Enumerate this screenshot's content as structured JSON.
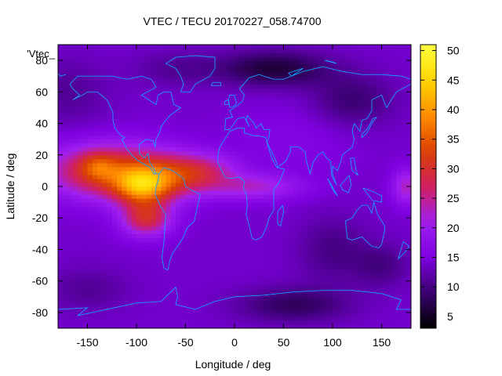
{
  "chart_data": {
    "type": "heatmap",
    "title": "VTEC / TECU 20170227_058.74700",
    "xlabel": "Longitude / deg",
    "ylabel": "Latitude / deg",
    "key_label": "'Vtec_",
    "xlim": [
      -180,
      180
    ],
    "ylim": [
      -90,
      90
    ],
    "xticks": [
      -150,
      -100,
      -50,
      0,
      50,
      100,
      150
    ],
    "yticks": [
      -80,
      -60,
      -40,
      -20,
      0,
      20,
      40,
      60,
      80
    ],
    "colorbar": {
      "min": 3,
      "max": 51,
      "ticks": [
        5,
        10,
        15,
        20,
        25,
        30,
        35,
        40,
        45,
        50
      ],
      "palette": [
        "#000000",
        "#3a0070",
        "#7f00e0",
        "#a020f0",
        "#d02060",
        "#d94000",
        "#ff8c00",
        "#ffd700",
        "#ffff40"
      ]
    },
    "background_level": 14,
    "features": [
      {
        "lon": -125,
        "lat": 10,
        "sx": 45,
        "sy": 12,
        "amp": 19
      },
      {
        "lon": -95,
        "lat": 0,
        "sx": 20,
        "sy": 8,
        "amp": 17
      },
      {
        "lon": -90,
        "lat": -20,
        "sx": 18,
        "sy": 8,
        "amp": 15
      },
      {
        "lon": -140,
        "lat": 13,
        "sx": 12,
        "sy": 6,
        "amp": 6
      },
      {
        "lon": -65,
        "lat": 6,
        "sx": 25,
        "sy": 10,
        "amp": 9
      },
      {
        "lon": -30,
        "lat": 10,
        "sx": 25,
        "sy": 8,
        "amp": 9
      },
      {
        "lon": 20,
        "lat": 0,
        "sx": 35,
        "sy": 6,
        "amp": 8
      },
      {
        "lon": 175,
        "lat": 0,
        "sx": 10,
        "sy": 8,
        "amp": 9
      },
      {
        "lon": 40,
        "lat": 75,
        "sx": 40,
        "sy": 8,
        "amp": -8
      },
      {
        "lon": 120,
        "lat": 55,
        "sx": 30,
        "sy": 12,
        "amp": -5
      },
      {
        "lon": 60,
        "lat": -75,
        "sx": 40,
        "sy": 8,
        "amp": -6
      },
      {
        "lon": 100,
        "lat": -40,
        "sx": 25,
        "sy": 15,
        "amp": -4
      },
      {
        "lon": 150,
        "lat": -50,
        "sx": 20,
        "sy": 10,
        "amp": -4
      },
      {
        "lon": -170,
        "lat": 60,
        "sx": 30,
        "sy": 15,
        "amp": -3
      },
      {
        "lon": -60,
        "lat": 75,
        "sx": 30,
        "sy": 8,
        "amp": -3
      },
      {
        "lon": -150,
        "lat": -65,
        "sx": 30,
        "sy": 10,
        "amp": -3
      },
      {
        "lon": 60,
        "lat": 30,
        "sx": 40,
        "sy": 15,
        "amp": 2
      }
    ],
    "coastlines": [
      [
        [
          -168,
          65
        ],
        [
          -160,
          70
        ],
        [
          -140,
          70
        ],
        [
          -125,
          70
        ],
        [
          -110,
          68
        ],
        [
          -95,
          70
        ],
        [
          -85,
          68
        ],
        [
          -80,
          63
        ],
        [
          -95,
          58
        ],
        [
          -90,
          56
        ],
        [
          -80,
          52
        ],
        [
          -78,
          58
        ],
        [
          -72,
          60
        ],
        [
          -65,
          60
        ],
        [
          -62,
          52
        ],
        [
          -55,
          50
        ],
        [
          -66,
          45
        ],
        [
          -70,
          42
        ],
        [
          -75,
          38
        ],
        [
          -76,
          35
        ],
        [
          -80,
          30
        ],
        [
          -81,
          25
        ],
        [
          -83,
          29
        ],
        [
          -90,
          30
        ],
        [
          -97,
          27
        ],
        [
          -97,
          21
        ],
        [
          -92,
          18
        ],
        [
          -88,
          21
        ],
        [
          -87,
          16
        ],
        [
          -83,
          12
        ],
        [
          -80,
          8
        ],
        [
          -77,
          8
        ],
        [
          -82,
          8
        ],
        [
          -86,
          12
        ],
        [
          -92,
          14
        ],
        [
          -100,
          17
        ],
        [
          -105,
          20
        ],
        [
          -110,
          24
        ],
        [
          -115,
          30
        ],
        [
          -112,
          31
        ],
        [
          -117,
          33
        ],
        [
          -122,
          37
        ],
        [
          -124,
          42
        ],
        [
          -124,
          47
        ],
        [
          -130,
          55
        ],
        [
          -140,
          60
        ],
        [
          -150,
          60
        ],
        [
          -155,
          58
        ],
        [
          -165,
          55
        ],
        [
          -158,
          58
        ],
        [
          -165,
          62
        ],
        [
          -168,
          65
        ]
      ],
      [
        [
          -77,
          8
        ],
        [
          -72,
          12
        ],
        [
          -63,
          10
        ],
        [
          -52,
          5
        ],
        [
          -50,
          0
        ],
        [
          -45,
          -2
        ],
        [
          -35,
          -5
        ],
        [
          -38,
          -13
        ],
        [
          -41,
          -22
        ],
        [
          -48,
          -26
        ],
        [
          -53,
          -33
        ],
        [
          -58,
          -38
        ],
        [
          -63,
          -42
        ],
        [
          -66,
          -47
        ],
        [
          -68,
          -53
        ],
        [
          -72,
          -52
        ],
        [
          -74,
          -45
        ],
        [
          -72,
          -35
        ],
        [
          -71,
          -25
        ],
        [
          -70,
          -18
        ],
        [
          -76,
          -12
        ],
        [
          -81,
          -5
        ],
        [
          -80,
          0
        ],
        [
          -78,
          3
        ],
        [
          -77,
          8
        ]
      ],
      [
        [
          -55,
          60
        ],
        [
          -45,
          60
        ],
        [
          -40,
          65
        ],
        [
          -25,
          70
        ],
        [
          -20,
          75
        ],
        [
          -20,
          82
        ],
        [
          -40,
          83
        ],
        [
          -60,
          82
        ],
        [
          -70,
          78
        ],
        [
          -60,
          75
        ],
        [
          -55,
          70
        ],
        [
          -52,
          65
        ],
        [
          -55,
          60
        ]
      ],
      [
        [
          -10,
          36
        ],
        [
          -9,
          43
        ],
        [
          -2,
          44
        ],
        [
          -5,
          48
        ],
        [
          2,
          51
        ],
        [
          8,
          54
        ],
        [
          10,
          58
        ],
        [
          5,
          62
        ],
        [
          15,
          69
        ],
        [
          25,
          71
        ],
        [
          40,
          68
        ],
        [
          50,
          68
        ],
        [
          70,
          73
        ],
        [
          90,
          76
        ],
        [
          110,
          73
        ],
        [
          130,
          71
        ],
        [
          150,
          71
        ],
        [
          170,
          70
        ],
        [
          180,
          68
        ]
      ],
      [
        [
          180,
          65
        ],
        [
          165,
          60
        ],
        [
          160,
          55
        ],
        [
          155,
          50
        ],
        [
          150,
          58
        ],
        [
          140,
          55
        ],
        [
          140,
          48
        ],
        [
          135,
          43
        ],
        [
          130,
          42
        ],
        [
          128,
          35
        ],
        [
          122,
          40
        ],
        [
          120,
          35
        ],
        [
          122,
          30
        ],
        [
          120,
          25
        ],
        [
          110,
          20
        ],
        [
          108,
          15
        ],
        [
          105,
          10
        ],
        [
          100,
          13
        ],
        [
          100,
          8
        ],
        [
          104,
          1
        ],
        [
          99,
          7
        ],
        [
          98,
          16
        ],
        [
          94,
          18
        ],
        [
          90,
          22
        ],
        [
          85,
          20
        ],
        [
          80,
          15
        ],
        [
          77,
          8
        ],
        [
          73,
          17
        ],
        [
          72,
          22
        ],
        [
          66,
          25
        ],
        [
          57,
          25
        ],
        [
          57,
          22
        ],
        [
          52,
          16
        ],
        [
          44,
          12
        ],
        [
          43,
          15
        ],
        [
          38,
          22
        ],
        [
          33,
          28
        ],
        [
          35,
          31
        ],
        [
          36,
          36
        ],
        [
          30,
          36
        ],
        [
          27,
          40
        ],
        [
          22,
          37
        ],
        [
          20,
          40
        ],
        [
          13,
          45
        ],
        [
          12,
          42
        ],
        [
          15,
          38
        ],
        [
          10,
          44
        ],
        [
          3,
          43
        ],
        [
          -5,
          36
        ],
        [
          -10,
          36
        ]
      ],
      [
        [
          -17,
          15
        ],
        [
          -10,
          6
        ],
        [
          -5,
          5
        ],
        [
          5,
          6
        ],
        [
          10,
          3
        ],
        [
          9,
          -1
        ],
        [
          12,
          -5
        ],
        [
          13,
          -12
        ],
        [
          12,
          -18
        ],
        [
          15,
          -25
        ],
        [
          18,
          -33
        ],
        [
          22,
          -34
        ],
        [
          28,
          -32
        ],
        [
          33,
          -25
        ],
        [
          35,
          -20
        ],
        [
          40,
          -15
        ],
        [
          40,
          -8
        ],
        [
          40,
          -2
        ],
        [
          45,
          2
        ],
        [
          51,
          11
        ],
        [
          43,
          12
        ],
        [
          38,
          18
        ],
        [
          33,
          28
        ],
        [
          32,
          31
        ],
        [
          25,
          32
        ],
        [
          20,
          32
        ],
        [
          10,
          34
        ],
        [
          10,
          37
        ],
        [
          3,
          37
        ],
        [
          -5,
          35
        ],
        [
          -10,
          30
        ],
        [
          -15,
          25
        ],
        [
          -17,
          20
        ],
        [
          -17,
          15
        ]
      ],
      [
        [
          113,
          -22
        ],
        [
          115,
          -33
        ],
        [
          120,
          -34
        ],
        [
          130,
          -32
        ],
        [
          135,
          -35
        ],
        [
          140,
          -38
        ],
        [
          147,
          -39
        ],
        [
          150,
          -37
        ],
        [
          153,
          -28
        ],
        [
          153,
          -25
        ],
        [
          146,
          -18
        ],
        [
          142,
          -10
        ],
        [
          140,
          -17
        ],
        [
          136,
          -12
        ],
        [
          130,
          -12
        ],
        [
          125,
          -15
        ],
        [
          120,
          -20
        ],
        [
          113,
          -22
        ]
      ],
      [
        [
          49,
          -12
        ],
        [
          44,
          -16
        ],
        [
          44,
          -24
        ],
        [
          47,
          -25
        ],
        [
          50,
          -16
        ],
        [
          49,
          -12
        ]
      ],
      [
        [
          -5,
          50
        ],
        [
          0,
          51
        ],
        [
          2,
          53
        ],
        [
          0,
          58
        ],
        [
          -5,
          58
        ],
        [
          -6,
          55
        ],
        [
          -5,
          50
        ]
      ],
      [
        [
          -10,
          52
        ],
        [
          -6,
          52
        ],
        [
          -6,
          55
        ],
        [
          -10,
          54
        ],
        [
          -10,
          52
        ]
      ],
      [
        [
          -24,
          64
        ],
        [
          -14,
          64
        ],
        [
          -14,
          66
        ],
        [
          -22,
          66
        ],
        [
          -24,
          64
        ]
      ],
      [
        [
          130,
          31
        ],
        [
          135,
          34
        ],
        [
          141,
          41
        ],
        [
          145,
          44
        ],
        [
          141,
          43
        ],
        [
          136,
          37
        ],
        [
          130,
          33
        ],
        [
          130,
          31
        ]
      ],
      [
        [
          95,
          5
        ],
        [
          105,
          -6
        ],
        [
          101,
          -3
        ],
        [
          95,
          5
        ]
      ],
      [
        [
          108,
          1
        ],
        [
          117,
          7
        ],
        [
          119,
          1
        ],
        [
          116,
          -4
        ],
        [
          110,
          -2
        ],
        [
          108,
          1
        ]
      ],
      [
        [
          131,
          -1
        ],
        [
          140,
          -3
        ],
        [
          150,
          -6
        ],
        [
          150,
          -10
        ],
        [
          141,
          -9
        ],
        [
          136,
          -5
        ],
        [
          131,
          -1
        ]
      ],
      [
        [
          172,
          -35
        ],
        [
          178,
          -38
        ],
        [
          175,
          -41
        ],
        [
          167,
          -46
        ],
        [
          172,
          -35
        ]
      ],
      [
        [
          118,
          18
        ],
        [
          122,
          18
        ],
        [
          124,
          10
        ],
        [
          126,
          7
        ],
        [
          120,
          10
        ],
        [
          118,
          18
        ]
      ],
      [
        [
          -180,
          -78
        ],
        [
          -150,
          -77
        ],
        [
          -160,
          -82
        ],
        [
          -100,
          -74
        ],
        [
          -75,
          -73
        ],
        [
          -60,
          -64
        ],
        [
          -58,
          -70
        ],
        [
          -60,
          -75
        ],
        [
          -40,
          -78
        ],
        [
          -20,
          -73
        ],
        [
          0,
          -70
        ],
        [
          30,
          -69
        ],
        [
          60,
          -67
        ],
        [
          90,
          -66
        ],
        [
          120,
          -66
        ],
        [
          150,
          -68
        ],
        [
          170,
          -72
        ],
        [
          165,
          -78
        ],
        [
          180,
          -78
        ]
      ],
      [
        [
          70,
          75
        ],
        [
          55,
          72
        ],
        [
          58,
          70
        ],
        [
          70,
          75
        ]
      ],
      [
        [
          100,
          79
        ],
        [
          92,
          80
        ],
        [
          104,
          78
        ],
        [
          100,
          79
        ]
      ],
      [
        [
          -180,
          72
        ],
        [
          -178,
          70
        ],
        [
          -172,
          71
        ]
      ]
    ]
  }
}
